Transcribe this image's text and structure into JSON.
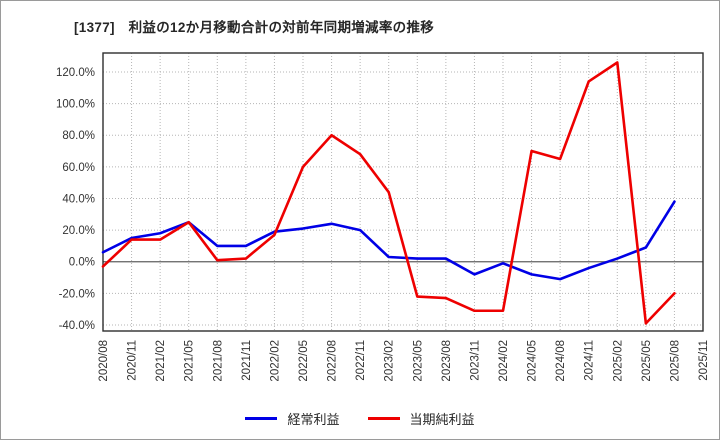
{
  "title": "[1377]　利益の12か月移動合計の対前年同期増減率の推移",
  "chart_data": {
    "type": "line",
    "title": "[1377]　利益の12か月移動合計の対前年同期増減率の推移",
    "xlabel": "",
    "ylabel": "",
    "grid": "dotted gray grid on both axes, solid line at 0%",
    "legend_position": "bottom-center",
    "ylim": [
      -43.8,
      132.0
    ],
    "yticks": {
      "values": [
        -40,
        -20,
        0,
        20,
        40,
        60,
        80,
        100,
        120
      ],
      "labels": [
        "-40.0%",
        "-20.0%",
        "0.0%",
        "20.0%",
        "40.0%",
        "60.0%",
        "80.0%",
        "100.0%",
        "120.0%"
      ]
    },
    "categories": [
      "2020/08",
      "2020/11",
      "2021/02",
      "2021/05",
      "2021/08",
      "2021/11",
      "2022/02",
      "2022/05",
      "2022/08",
      "2022/11",
      "2023/02",
      "2023/05",
      "2023/08",
      "2023/11",
      "2024/02",
      "2024/05",
      "2024/08",
      "2024/11",
      "2025/02",
      "2025/05",
      "2025/08",
      "2025/11"
    ],
    "series": [
      {
        "name": "経常利益",
        "color": "#0000e6",
        "values": [
          6,
          15,
          18,
          25,
          10,
          10,
          19,
          21,
          24,
          20,
          3,
          2,
          2,
          -8,
          -1,
          -8,
          -11,
          -4,
          2,
          9,
          38,
          null
        ]
      },
      {
        "name": "当期純利益",
        "color": "#ee0000",
        "values": [
          -3,
          14,
          14,
          25,
          1,
          2,
          17,
          60,
          80,
          68,
          44,
          -22,
          -23,
          -31,
          -31,
          70,
          65,
          114,
          126,
          -39,
          -20,
          null
        ]
      }
    ]
  },
  "colors": {
    "grid": "#b5b5b5",
    "zero_line": "#606060",
    "plot_border": "#2e2e2e",
    "tick_text": "#333333"
  }
}
